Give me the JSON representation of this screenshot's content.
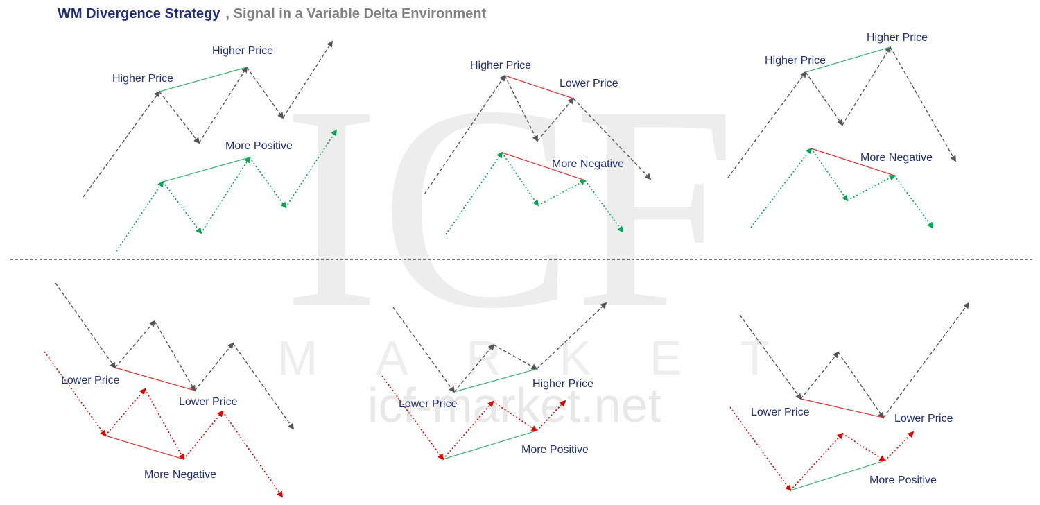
{
  "header": {
    "title": "WM Divergence  Strategy",
    "subtitle": ", Signal in a Variable Delta Environment"
  },
  "watermark": {
    "logo": "ICF",
    "word": "MARKET",
    "url": "icf-market.net"
  },
  "colors": {
    "price_path": "#555555",
    "delta_positive_path": "#00a650",
    "delta_negative_path": "#e00000",
    "bull_divergence_line": "#3cb371",
    "bear_divergence_line": "#e03030",
    "label_text": "#1f2d78",
    "separator": "#222222"
  },
  "panels": [
    {
      "id": "top-left",
      "labels": {
        "price_a": "Higher Price",
        "price_b": "Higher Price",
        "delta": "More Positive"
      }
    },
    {
      "id": "top-middle",
      "labels": {
        "price_a": "Higher Price",
        "price_b": "Lower Price",
        "delta": "More Negative"
      }
    },
    {
      "id": "top-right",
      "labels": {
        "price_a": "Higher Price",
        "price_b": "Higher Price",
        "delta": "More Negative"
      }
    },
    {
      "id": "bottom-left",
      "labels": {
        "price_a": "Lower Price",
        "price_b": "Lower Price",
        "delta": "More Negative"
      }
    },
    {
      "id": "bottom-middle",
      "labels": {
        "price_a": "Lower Price",
        "price_b": "Higher Price",
        "delta": "More Positive"
      }
    },
    {
      "id": "bottom-right",
      "labels": {
        "price_a": "Lower Price",
        "price_b": "Lower Price",
        "delta": "More Positive"
      }
    }
  ]
}
